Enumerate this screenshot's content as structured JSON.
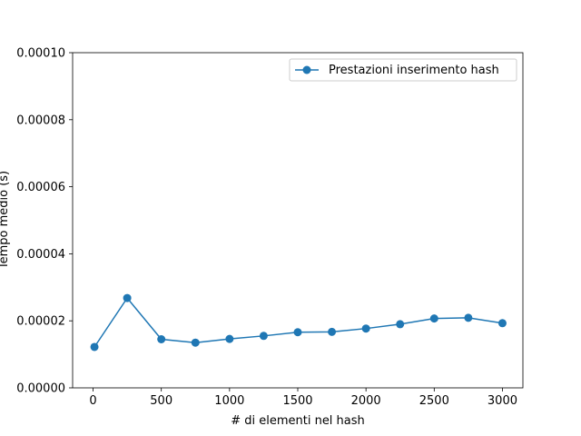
{
  "chart_data": {
    "type": "line",
    "title": "",
    "xlabel": "# di elementi nel hash",
    "ylabel": "Tempo medio (s)",
    "xlim": [
      -150,
      3150
    ],
    "ylim": [
      0,
      0.0001
    ],
    "xticks": [
      0,
      500,
      1000,
      1500,
      2000,
      2500,
      3000
    ],
    "xtick_labels": [
      "0",
      "500",
      "1000",
      "1500",
      "2000",
      "2500",
      "3000"
    ],
    "yticks": [
      0,
      2e-05,
      4e-05,
      6e-05,
      8e-05,
      0.0001
    ],
    "ytick_labels": [
      "0.00000",
      "0.00002",
      "0.00004",
      "0.00006",
      "0.00008",
      "0.00010"
    ],
    "grid": false,
    "legend_position": "top-right",
    "series": [
      {
        "name": "Prestazioni inserimento hash",
        "color": "#1f77b4",
        "marker": "circle",
        "x": [
          10,
          250,
          500,
          750,
          1000,
          1250,
          1500,
          1750,
          2000,
          2250,
          2500,
          2750,
          3000
        ],
        "y": [
          1.22e-05,
          2.68e-05,
          1.45e-05,
          1.35e-05,
          1.46e-05,
          1.55e-05,
          1.66e-05,
          1.67e-05,
          1.77e-05,
          1.9e-05,
          2.07e-05,
          2.09e-05,
          1.93e-05
        ]
      }
    ]
  }
}
